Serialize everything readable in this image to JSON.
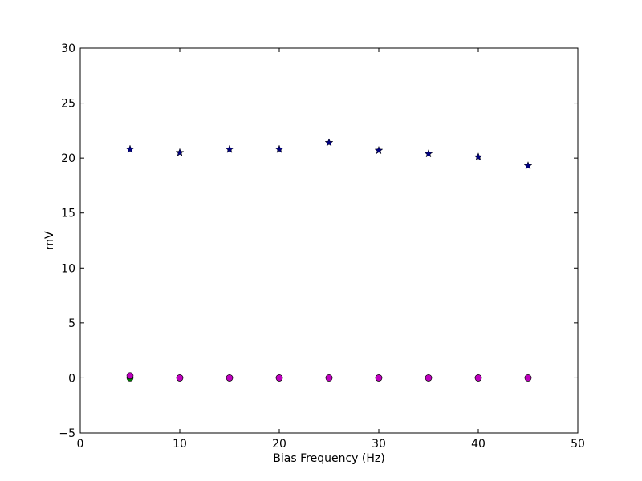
{
  "chart_data": {
    "type": "scatter",
    "title": "",
    "xlabel": "Bias Frequency (Hz)",
    "ylabel": "mV",
    "xlim": [
      0,
      50
    ],
    "ylim": [
      -5,
      30
    ],
    "xticks": [
      0,
      10,
      20,
      30,
      40,
      50
    ],
    "yticks": [
      -5,
      0,
      5,
      10,
      15,
      20,
      25,
      30
    ],
    "grid": false,
    "legend": "none",
    "series": [
      {
        "marker": "star",
        "color": "#000080",
        "x": [
          5,
          10,
          15,
          20,
          25,
          30,
          35,
          40,
          45
        ],
        "y": [
          20.8,
          20.5,
          20.8,
          20.8,
          21.4,
          20.7,
          20.4,
          20.1,
          19.3
        ]
      },
      {
        "marker": "circle",
        "color": "#008000",
        "x": [
          5,
          10,
          15,
          20,
          25,
          30,
          35,
          40,
          45
        ],
        "y": [
          0.0,
          0.0,
          0.0,
          0.0,
          0.0,
          0.0,
          0.0,
          0.0,
          0.0
        ]
      },
      {
        "marker": "circle",
        "color": "#bf00bf",
        "x": [
          5,
          10,
          15,
          20,
          25,
          30,
          35,
          40,
          45
        ],
        "y": [
          0.2,
          0.0,
          0.0,
          0.0,
          0.0,
          0.0,
          0.0,
          0.0,
          0.0
        ]
      }
    ]
  }
}
